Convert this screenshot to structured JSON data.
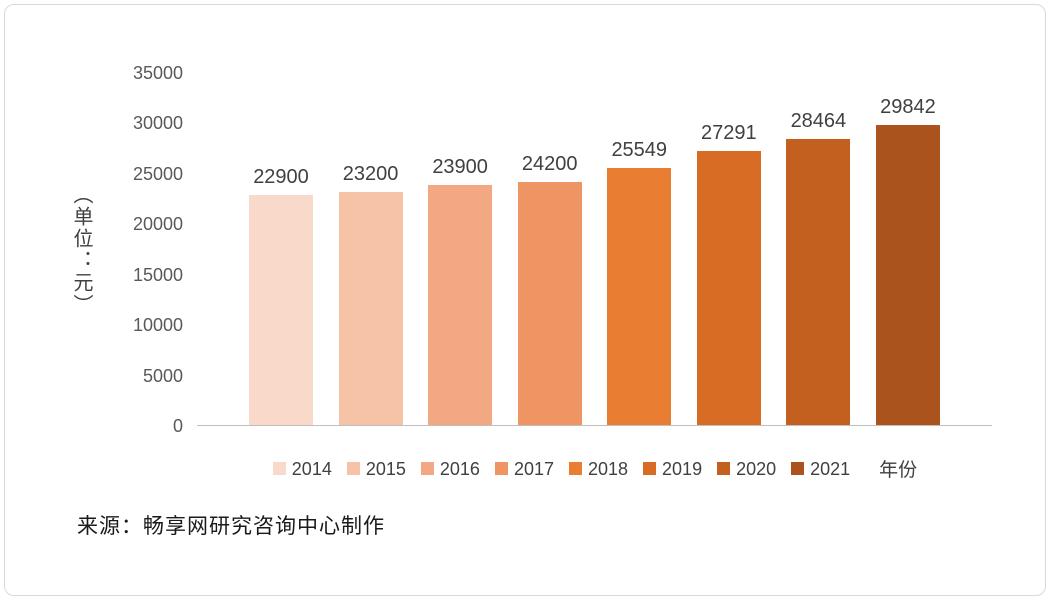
{
  "chart_data": {
    "type": "bar",
    "categories": [
      "2014",
      "2015",
      "2016",
      "2017",
      "2018",
      "2019",
      "2020",
      "2021"
    ],
    "values": [
      22900,
      23200,
      23900,
      24200,
      25549,
      27291,
      28464,
      29842
    ],
    "bar_colors": [
      "#f9d9c9",
      "#f6c3a6",
      "#f2a983",
      "#ef9463",
      "#e97e33",
      "#d96c24",
      "#c35f1f",
      "#aa531c"
    ],
    "title": "",
    "xlabel": "年份",
    "ylabel": "（单位：元）",
    "ylim": [
      0,
      35000
    ],
    "yticks": [
      "0",
      "5000",
      "10000",
      "15000",
      "20000",
      "25000",
      "30000",
      "35000"
    ],
    "grid": false,
    "legend_position": "bottom"
  },
  "source_text": "来源：畅享网研究咨询中心制作",
  "colors": {
    "axis_line": "#bfbfbf",
    "tick_text": "#595959",
    "label_text": "#404040",
    "border": "#d9d9d9"
  }
}
